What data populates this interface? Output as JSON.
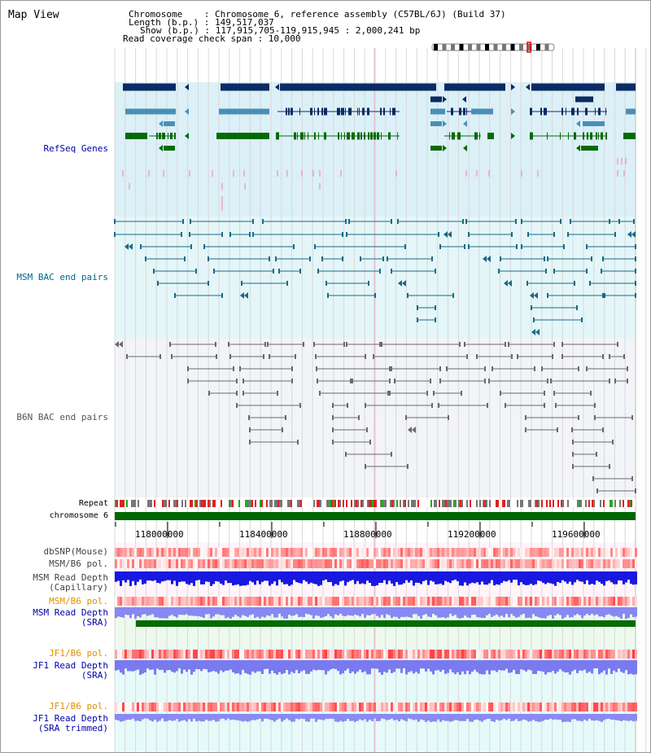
{
  "view_title": "Map View",
  "info": {
    "chromosome_line": "Chromosome    : Chromosome 6, reference assembly (C57BL/6J) (Build 37)",
    "length_line": "Length (b.p.) : 149,517,037",
    "show_line": "Show (b.p.) : 117,915,705-119,915,945 : 2,000,241 bp",
    "coverage_line": "Read coverage check span : 10,000"
  },
  "tracks": {
    "refseq": "RefSeq Genes",
    "msm_bac": "MSM BAC end pairs",
    "b6n_bac": "B6N BAC end pairs",
    "repeat": "Repeat",
    "chromosome": "chromosome 6",
    "dbsnp": "dbSNP(Mouse)",
    "msm_b6_pol": "MSM/B6 pol.",
    "msm_depth_cap_1": "MSM Read Depth",
    "msm_depth_cap_2": "(Capillary)",
    "msm_b6_pol_2": "MSM/B6 pol.",
    "msm_depth_sra_1": "MSM Read Depth",
    "msm_depth_sra_2": "(SRA)",
    "jf1_b6_pol": "JF1/B6 pol.",
    "jf1_depth_sra_1": "JF1 Read Depth",
    "jf1_depth_sra_2": "(SRA)",
    "jf1_b6_pol_2": "JF1/B6 pol.",
    "jf1_depth_trim_1": "JF1 Read Depth",
    "jf1_depth_trim_2": "(SRA trimmed)"
  },
  "axis_ticks": [
    "118000000",
    "118400000",
    "118800000",
    "119200000",
    "119600000"
  ],
  "colors": {
    "refseq_bg": "#dcf0f8",
    "msm_bg": "#e4f6f8",
    "b6n_bg": "#f2f4f8",
    "navy": "#0a2b63",
    "steel": "#4a8fb8",
    "green": "#056b05",
    "teal": "#1a6a86",
    "gray": "#6a6a6a",
    "blue_label": "#0000aa",
    "teal_label": "#006688",
    "orange_label": "#e09000",
    "depth_blue": "#2a2ae8",
    "depth_light": "#8888f0",
    "chrom_green": "#006600"
  }
}
